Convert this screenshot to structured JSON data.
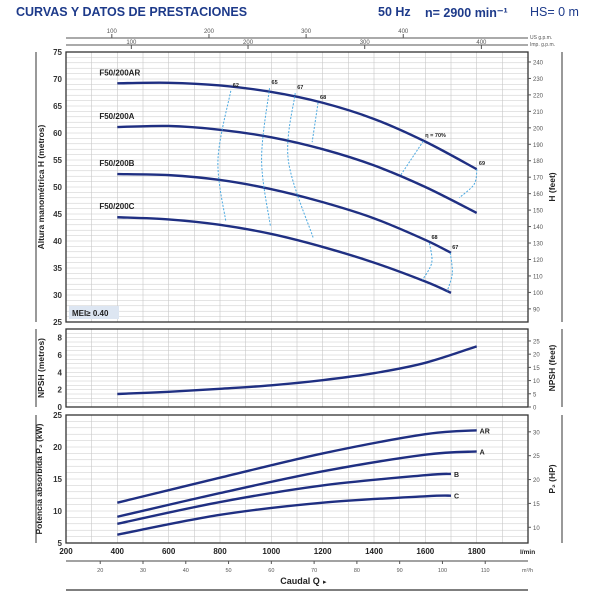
{
  "header": {
    "title": "CURVAS Y DATOS DE PRESTACIONES",
    "frequency": "50 Hz",
    "speed": "n= 2900 min⁻¹",
    "hs": "HS= 0 m"
  },
  "colors": {
    "curve": "#1f2f82",
    "efficiency": "#4aa8e0",
    "title": "#1d3a8a",
    "grid": "#c8c8c8"
  },
  "chart_data": [
    {
      "type": "line",
      "title": "",
      "xlabel": "Caudal Q",
      "x_unit": "l/min",
      "xlim": [
        200,
        2000
      ],
      "x_ticks": [
        200,
        400,
        600,
        800,
        1000,
        1200,
        1400,
        1600,
        1800
      ],
      "ylabel": "Altura manométrica H  (metros)",
      "ylim": [
        25,
        75
      ],
      "y_ticks": [
        25,
        30,
        35,
        40,
        45,
        50,
        55,
        60,
        65,
        70,
        75
      ],
      "y2label": "H (feet)",
      "y2_ticks": [
        90,
        100,
        110,
        120,
        130,
        140,
        150,
        160,
        170,
        180,
        190,
        200,
        210,
        220,
        230,
        240
      ],
      "top_axes": [
        {
          "unit": "US g.p.m.",
          "ticks": [
            100,
            200,
            300,
            400
          ]
        },
        {
          "unit": "Imp. g.p.m.",
          "ticks": [
            100,
            200,
            300,
            400
          ]
        }
      ],
      "grid": true,
      "annotation": "MEI≥ 0.40",
      "series": [
        {
          "name": "F50/200AR",
          "x": [
            400,
            600,
            800,
            1000,
            1200,
            1400,
            1600,
            1800
          ],
          "y": [
            69.2,
            69.3,
            68.8,
            67.6,
            65.6,
            62.6,
            58.4,
            53.3
          ]
        },
        {
          "name": "F50/200A",
          "x": [
            400,
            600,
            800,
            1000,
            1200,
            1400,
            1600,
            1800
          ],
          "y": [
            61.1,
            61.3,
            60.6,
            59.2,
            57.0,
            54.0,
            50.0,
            45.2
          ]
        },
        {
          "name": "F50/200B",
          "x": [
            400,
            600,
            800,
            1000,
            1200,
            1400,
            1600,
            1700
          ],
          "y": [
            52.4,
            52.2,
            51.3,
            49.6,
            47.2,
            44.2,
            40.2,
            37.8
          ]
        },
        {
          "name": "F50/200C",
          "x": [
            400,
            600,
            800,
            1000,
            1200,
            1400,
            1600,
            1700
          ],
          "y": [
            44.4,
            44.0,
            43.0,
            41.3,
            38.9,
            36.0,
            32.5,
            30.4
          ]
        }
      ],
      "efficiency_lines": [
        {
          "label": "62",
          "points": [
            [
              842,
              67.8
            ],
            [
              792,
              55
            ],
            [
              823,
              43.5
            ]
          ]
        },
        {
          "label": "65",
          "points": [
            [
              993,
              68.3
            ],
            [
              962,
              55
            ],
            [
              997,
              42.6
            ]
          ]
        },
        {
          "label": "67",
          "points": [
            [
              1093,
              67.4
            ],
            [
              1066,
              55
            ],
            [
              1163,
              40.6
            ]
          ]
        },
        {
          "label": "68",
          "points": [
            [
              1182,
              65.6
            ],
            [
              1159,
              58.3
            ]
          ]
        },
        {
          "label": "η = 70%",
          "points": [
            [
              1592,
              58.5
            ],
            [
              1504,
              52.2
            ]
          ]
        },
        {
          "label": "69",
          "points": [
            [
              1801,
              53.3
            ],
            [
              1790,
              50.5
            ],
            [
              1732,
              48
            ]
          ]
        },
        {
          "label": "68",
          "points": [
            [
              1616,
              39.6
            ],
            [
              1625,
              36
            ],
            [
              1589,
              32.8
            ]
          ]
        },
        {
          "label": "67",
          "points": [
            [
              1697,
              37.8
            ],
            [
              1705,
              34
            ],
            [
              1685,
              30.7
            ]
          ]
        }
      ]
    },
    {
      "type": "line",
      "ylabel": "NPSH  (metros)",
      "ylim": [
        0,
        9
      ],
      "y_ticks": [
        0,
        2,
        4,
        6,
        8
      ],
      "y2label": "NPSH  (feet)",
      "y2_ticks": [
        0,
        5,
        10,
        15,
        20,
        25
      ],
      "grid": true,
      "series": [
        {
          "x": [
            400,
            600,
            800,
            1000,
            1200,
            1400,
            1600,
            1800
          ],
          "y": [
            1.5,
            1.75,
            2.1,
            2.5,
            3.1,
            3.9,
            5.1,
            7.0
          ]
        }
      ]
    },
    {
      "type": "line",
      "ylabel": "Potencia absorbida P₂  (kW)",
      "ylim": [
        5,
        25
      ],
      "y_ticks": [
        5,
        10,
        15,
        20,
        25
      ],
      "y2label": "P₂  (HP)",
      "y2_ticks": [
        10,
        15,
        20,
        25,
        30
      ],
      "x_ticks": [
        200,
        400,
        600,
        800,
        1000,
        1200,
        1400,
        1600,
        1800
      ],
      "x_unit": "l/min",
      "x2_unit": "m³/h",
      "x2_ticks": [
        20,
        30,
        40,
        50,
        60,
        70,
        80,
        90,
        100,
        110
      ],
      "grid": true,
      "series": [
        {
          "name": "AR",
          "x": [
            400,
            800,
            1200,
            1600,
            1800
          ],
          "y": [
            11.3,
            15.2,
            19.0,
            22.0,
            22.6
          ]
        },
        {
          "name": "A",
          "x": [
            400,
            800,
            1200,
            1600,
            1800
          ],
          "y": [
            9.1,
            12.8,
            16.2,
            18.8,
            19.3
          ]
        },
        {
          "name": "B",
          "x": [
            400,
            800,
            1200,
            1600,
            1700
          ],
          "y": [
            8.0,
            11.4,
            14.0,
            15.6,
            15.8
          ]
        },
        {
          "name": "C",
          "x": [
            400,
            800,
            1200,
            1600,
            1700
          ],
          "y": [
            6.3,
            9.4,
            11.3,
            12.3,
            12.4
          ]
        }
      ]
    }
  ]
}
